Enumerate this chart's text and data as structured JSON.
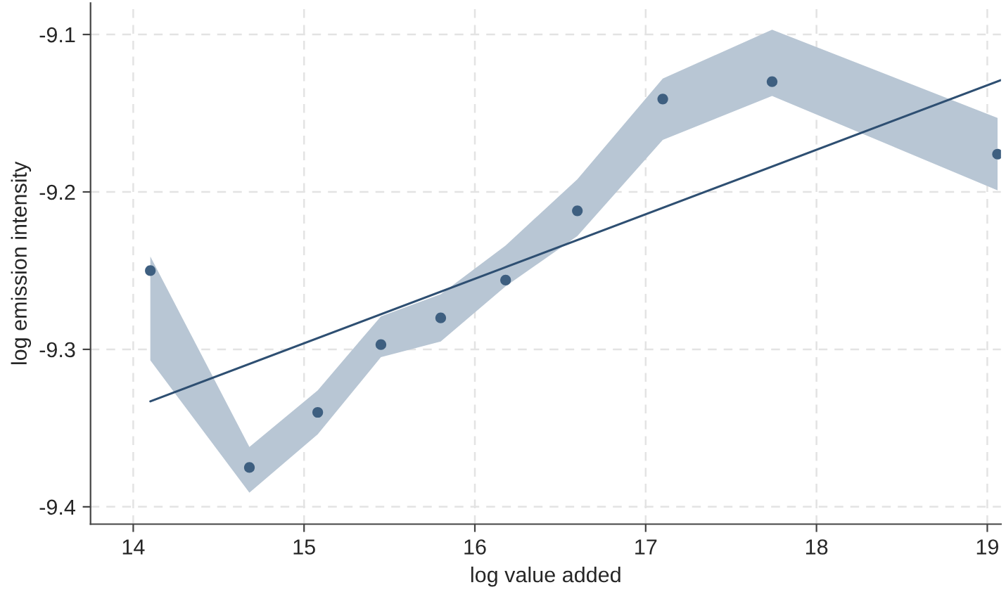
{
  "chart_data": {
    "type": "scatter",
    "xlabel": "log value added",
    "ylabel": "log emission intensity",
    "xlim": [
      13.75,
      19.08
    ],
    "ylim": [
      -9.411,
      -9.08
    ],
    "xticks": [
      14,
      15,
      16,
      17,
      18,
      19
    ],
    "yticks": [
      -9.4,
      -9.3,
      -9.2,
      -9.1
    ],
    "grid": true,
    "series": [
      {
        "type": "area",
        "color": "#b8c6d4",
        "x": [
          14.1,
          14.68,
          15.08,
          15.45,
          15.8,
          16.18,
          16.6,
          17.1,
          17.74,
          19.06
        ],
        "values": [
          null,
          null,
          null,
          null,
          null,
          null,
          null,
          null,
          null,
          null
        ],
        "lower": [
          -9.307,
          -9.391,
          -9.354,
          -9.305,
          -9.295,
          -9.26,
          -9.228,
          -9.167,
          -9.139,
          -9.199
        ],
        "upper": [
          -9.241,
          -9.362,
          -9.326,
          -9.279,
          -9.265,
          -9.234,
          -9.192,
          -9.128,
          -9.097,
          -9.153
        ]
      },
      {
        "type": "line",
        "color": "#2e4f72",
        "x": [
          14.1,
          19.08
        ],
        "values": [
          -9.333,
          -9.129
        ]
      },
      {
        "marker": "circle",
        "color": "#3e5f80",
        "x": [
          14.1,
          14.68,
          15.08,
          15.45,
          15.8,
          16.18,
          16.6,
          17.1,
          17.74,
          19.06
        ],
        "values": [
          -9.25,
          -9.375,
          -9.34,
          -9.297,
          -9.28,
          -9.256,
          -9.212,
          -9.141,
          -9.13,
          -9.176
        ]
      }
    ]
  }
}
